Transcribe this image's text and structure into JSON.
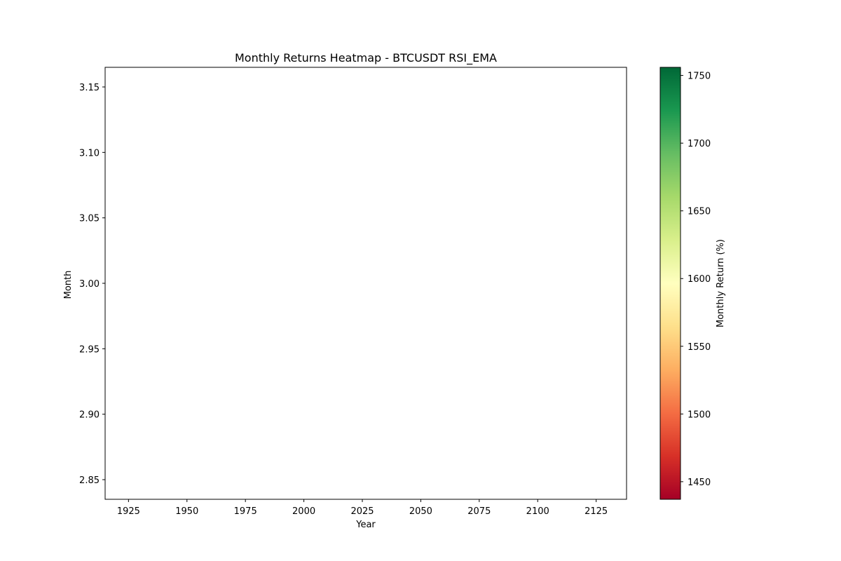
{
  "chart_data": {
    "type": "heatmap",
    "title": "Monthly Returns Heatmap - BTCUSDT RSI_EMA",
    "xlabel": "Year",
    "ylabel": "Month",
    "xlim": [
      1915,
      2138
    ],
    "ylim": [
      2.835,
      3.165
    ],
    "x_ticks": [
      1925,
      1950,
      1975,
      2000,
      2025,
      2050,
      2075,
      2100,
      2125
    ],
    "y_ticks": [
      2.85,
      2.9,
      2.95,
      3.0,
      3.05,
      3.1,
      3.15
    ],
    "x_tick_labels": [
      "1925",
      "1950",
      "1975",
      "2000",
      "2025",
      "2050",
      "2075",
      "2100",
      "2125"
    ],
    "y_tick_labels": [
      "2.85",
      "2.90",
      "2.95",
      "3.00",
      "3.05",
      "3.10",
      "3.15"
    ],
    "cells": [],
    "grid": false,
    "colorbar": {
      "label": "Monthly Return (%)",
      "colormap": "RdYlGn",
      "range": [
        1437,
        1756
      ],
      "ticks": [
        1450,
        1500,
        1550,
        1600,
        1650,
        1700,
        1750
      ],
      "tick_labels": [
        "1450",
        "1500",
        "1550",
        "1600",
        "1650",
        "1700",
        "1750"
      ],
      "stops": [
        "#a50026",
        "#d73027",
        "#f46d43",
        "#fdae61",
        "#fee08b",
        "#ffffbf",
        "#d9ef8b",
        "#a6d96a",
        "#66bd63",
        "#1a9850",
        "#006837"
      ]
    }
  }
}
